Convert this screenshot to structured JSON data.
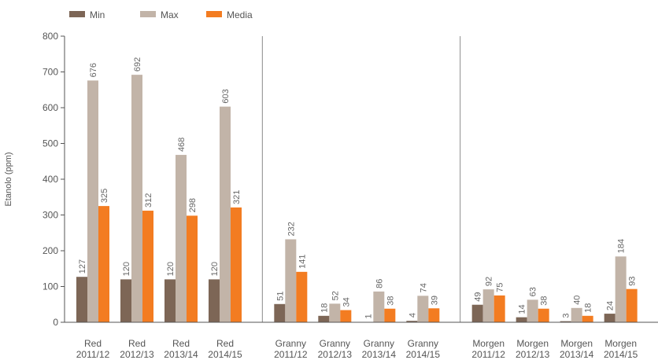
{
  "chart_data": {
    "type": "bar",
    "ylabel": "Etanolo (ppm)",
    "ylim": [
      0,
      800
    ],
    "yticks": [
      0,
      100,
      200,
      300,
      400,
      500,
      600,
      700,
      800
    ],
    "legend_position": "top-left",
    "groups": [
      {
        "categories": [
          {
            "label": [
              "Red",
              "2011/12"
            ],
            "values": [
              127,
              676,
              325
            ]
          },
          {
            "label": [
              "Red",
              "2012/13"
            ],
            "values": [
              120,
              692,
              312
            ]
          },
          {
            "label": [
              "Red",
              "2013/14"
            ],
            "values": [
              120,
              468,
              298
            ]
          },
          {
            "label": [
              "Red",
              "2014/15"
            ],
            "values": [
              120,
              603,
              321
            ]
          }
        ]
      },
      {
        "categories": [
          {
            "label": [
              "Granny",
              "2011/12"
            ],
            "values": [
              51,
              232,
              141
            ]
          },
          {
            "label": [
              "Granny",
              "2012/13"
            ],
            "values": [
              18,
              52,
              34
            ]
          },
          {
            "label": [
              "Granny",
              "2013/14"
            ],
            "values": [
              1,
              86,
              38
            ]
          },
          {
            "label": [
              "Granny",
              "2014/15"
            ],
            "values": [
              4,
              74,
              39
            ]
          }
        ]
      },
      {
        "categories": [
          {
            "label": [
              "Morgen",
              "2011/12"
            ],
            "values": [
              49,
              92,
              75
            ]
          },
          {
            "label": [
              "Morgen",
              "2012/13"
            ],
            "values": [
              14,
              63,
              38
            ]
          },
          {
            "label": [
              "Morgen",
              "2013/14"
            ],
            "values": [
              3,
              40,
              18
            ]
          },
          {
            "label": [
              "Morgen",
              "2014/15"
            ],
            "values": [
              24,
              184,
              93
            ]
          }
        ]
      }
    ],
    "series": [
      {
        "name": "Min",
        "color": "#7d6656"
      },
      {
        "name": "Max",
        "color": "#c2b4a8"
      },
      {
        "name": "Media",
        "color": "#f37c21"
      }
    ]
  }
}
